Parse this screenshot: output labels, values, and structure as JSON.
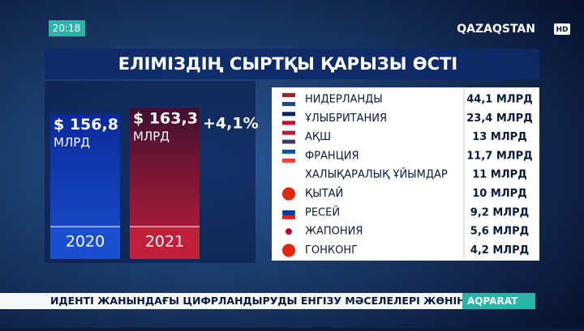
{
  "clock": "20:18",
  "channel": {
    "name": "QAZAQSTAN",
    "badge": "HD"
  },
  "chart_data": {
    "type": "bar",
    "title": "ЕЛІМІЗДІҢ СЫРТҚЫ ҚАРЫЗЫ ӨСТІ",
    "categories": [
      "2020",
      "2021"
    ],
    "values": [
      156.8,
      163.3
    ],
    "value_labels": [
      "$ 156,8",
      "$ 163,3"
    ],
    "value_unit": "МЛРД",
    "colors": [
      "#1a4fd0",
      "#c0203a"
    ],
    "change_label": "+4,1%"
  },
  "table": {
    "rows": [
      [
        "НИДЕРЛАНДЫ",
        "44,1 МЛРД"
      ],
      [
        "ҰЛЫБРИТАНИЯ",
        "23,4 МЛРД"
      ],
      [
        "АҚШ",
        "13 МЛРД"
      ],
      [
        "ФРАНЦИЯ",
        "11,7 МЛРД"
      ],
      [
        "ХАЛЫҚАРАЛЫҚ ҰЙЫМДАР",
        "11 МЛРД"
      ],
      [
        "ҚЫТАЙ",
        "10 МЛРД"
      ],
      [
        "РЕСЕЙ",
        "9,2 МЛРД"
      ],
      [
        "ЖАПОНИЯ",
        "5,6 МЛРД"
      ],
      [
        "ГОНКОНГ",
        "4,2 МЛРД"
      ]
    ]
  },
  "ticker": {
    "text": "ИДЕНТІ ЖАНЫНДАҒЫ ЦИФРЛАНДЫРУДЫ ЕНГІЗУ МӘСЕЛЕЛЕРІ ЖӨНІНДЕГІ",
    "brand": "AQPARAT"
  }
}
